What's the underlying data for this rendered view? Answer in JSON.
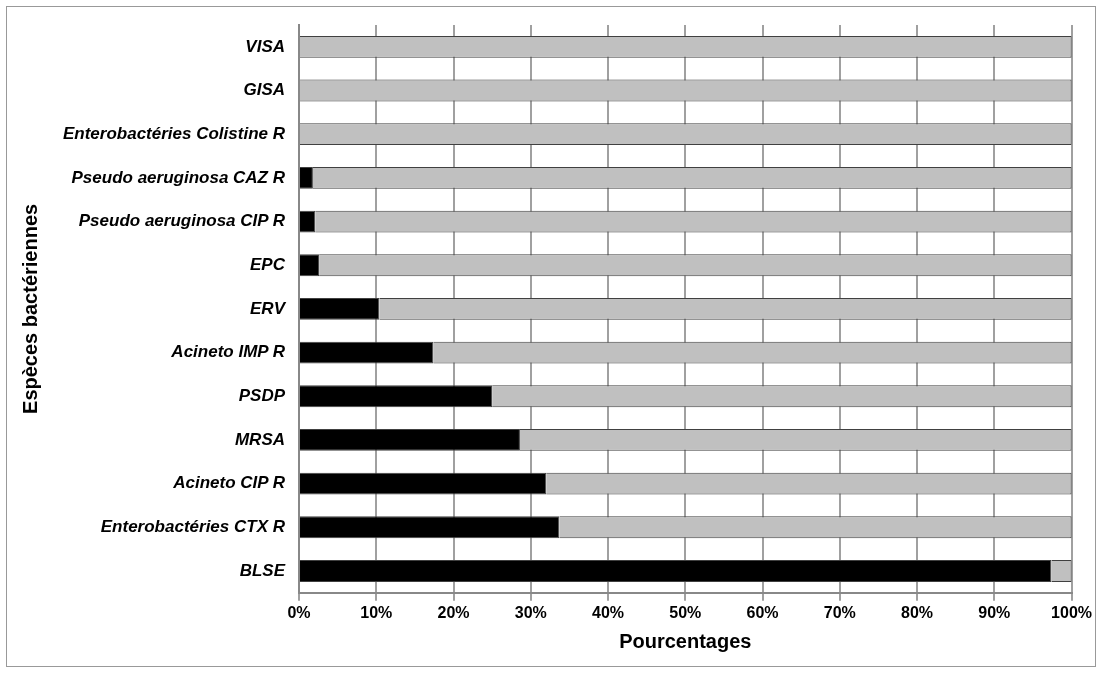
{
  "chart_data": {
    "type": "bar",
    "orientation": "horizontal",
    "stacked": true,
    "xlabel": "Pourcentages",
    "ylabel": "Espèces bactériennes",
    "categories": [
      "VISA",
      "GISA",
      "Enterobactéries Colistine R",
      "Pseudo aeruginosa CAZ R",
      "Pseudo aeruginosa CIP R",
      "EPC",
      "ERV",
      "Acineto IMP R",
      "PSDP",
      "MRSA",
      "Acineto CIP R",
      "Enterobactéries CTX R",
      "BLSE"
    ],
    "series": [
      {
        "color": "#000000",
        "values": [
          0,
          0,
          0,
          1.8,
          2.1,
          2.6,
          10.4,
          17.4,
          25.0,
          28.6,
          32.0,
          33.7,
          97.4
        ]
      },
      {
        "color": "#c0c0c0",
        "values": [
          100,
          100,
          100,
          98.2,
          97.9,
          97.4,
          89.6,
          82.6,
          75.0,
          71.4,
          68.0,
          66.3,
          2.6
        ]
      }
    ],
    "xlim": [
      0,
      100
    ],
    "xticks": [
      {
        "value": 0,
        "label": "0%"
      },
      {
        "value": 10,
        "label": "10%"
      },
      {
        "value": 20,
        "label": "20%"
      },
      {
        "value": 30,
        "label": "30%"
      },
      {
        "value": 40,
        "label": "40%"
      },
      {
        "value": 50,
        "label": "50%"
      },
      {
        "value": 60,
        "label": "60%"
      },
      {
        "value": 70,
        "label": "70%"
      },
      {
        "value": 80,
        "label": "80%"
      },
      {
        "value": 90,
        "label": "90%"
      },
      {
        "value": 100,
        "label": "100%"
      }
    ],
    "grid": "x",
    "legend": false
  }
}
